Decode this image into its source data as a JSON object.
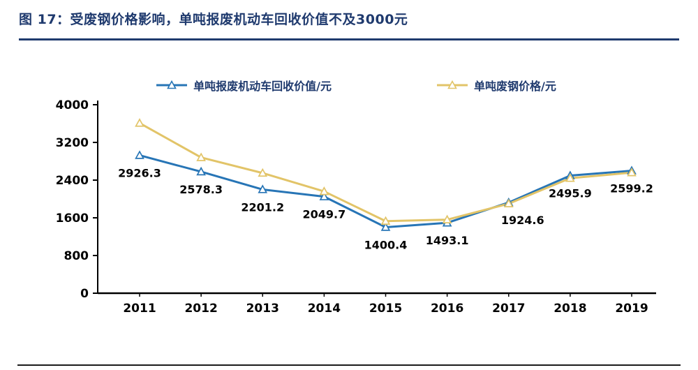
{
  "figure": {
    "title": "图 17：受废钢价格影响，单吨报废机动车回收价值不及3000元"
  },
  "chart_data": {
    "type": "line",
    "title": "图 17：受废钢价格影响，单吨报废机动车回收价值不及3000元",
    "categories": [
      "2011",
      "2012",
      "2013",
      "2014",
      "2015",
      "2016",
      "2017",
      "2018",
      "2019"
    ],
    "series": [
      {
        "name": "单吨报废机动车回收价值/元",
        "color": "#2775b6",
        "values": [
          2926.3,
          2578.3,
          2201.2,
          2049.7,
          1400.4,
          1493.1,
          1924.6,
          2495.9,
          2599.2
        ],
        "data_labels": true,
        "label_dx": [
          0,
          0,
          0,
          0,
          0,
          0,
          20,
          0,
          0
        ]
      },
      {
        "name": "单吨废钢价格/元",
        "color": "#e2c468",
        "values": [
          3610,
          2880,
          2550,
          2160,
          1530,
          1560,
          1900,
          2440,
          2560
        ],
        "data_labels": false
      }
    ],
    "ylim": [
      0,
      4000
    ],
    "yticks": [
      0,
      800,
      1600,
      2400,
      3200,
      4000
    ],
    "xlabel": "",
    "ylabel": "",
    "grid": false,
    "legend_position": "top",
    "marker": "triangle"
  }
}
